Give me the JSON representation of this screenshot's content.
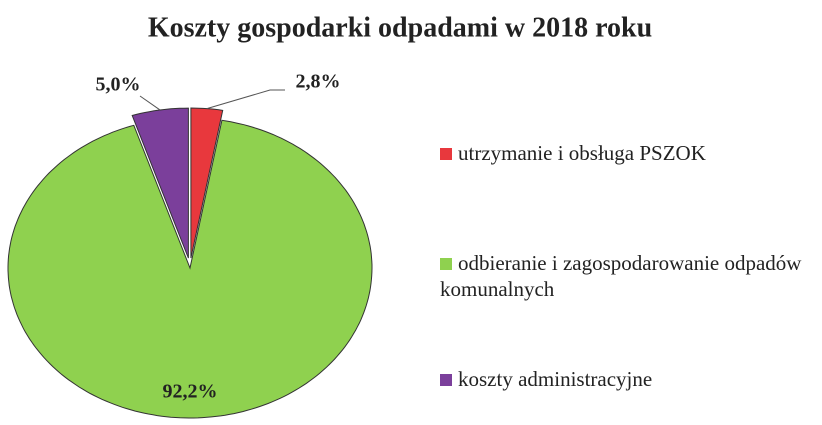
{
  "chart_data": {
    "type": "pie",
    "title": "Koszty gospodarki odpadami w 2018 roku",
    "categories": [
      "utrzymanie i obsługa PSZOK",
      "odbieranie i zagospodarowanie odpadów komunalnych",
      "koszty administracyjne"
    ],
    "values": [
      2.8,
      92.2,
      5.0
    ],
    "value_labels": [
      "2,8%",
      "92,2%",
      "5,0%"
    ],
    "colors": [
      "#e8383d",
      "#8fd14f",
      "#7b3f9b"
    ]
  }
}
